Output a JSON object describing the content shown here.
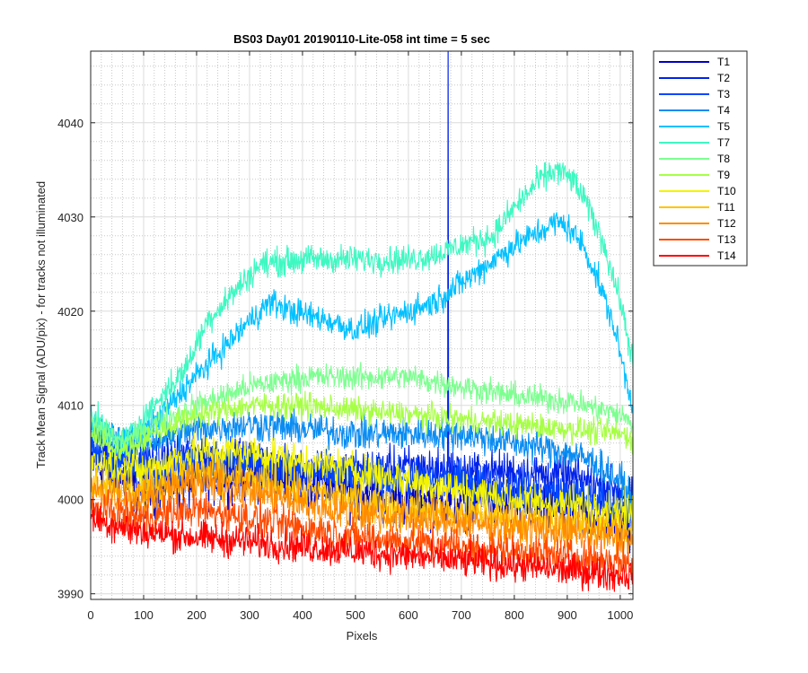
{
  "chart_data": {
    "type": "line",
    "title": "BS03 Day01 20190110-Lite-058 int time = 5 sec",
    "xlabel": "Pixels",
    "ylabel": "Track Mean Signal (ADU/pix) - for tracks not illuminated",
    "xlim": [
      0,
      1024
    ],
    "ylim": [
      3989.4,
      4047.6
    ],
    "xticks": [
      0,
      100,
      200,
      300,
      400,
      500,
      600,
      700,
      800,
      900,
      1000
    ],
    "yticks": [
      3990,
      4000,
      4010,
      4020,
      4030,
      4040
    ],
    "grid": true,
    "minor_grid": true,
    "legend_position": "outside-top-right",
    "x_spacing": 1,
    "series": [
      {
        "name": "T1",
        "color": "#0000c4",
        "noise": 2.2,
        "profile": [
          [
            0,
            4004
          ],
          [
            100,
            4001
          ],
          [
            200,
            4002
          ],
          [
            300,
            4003
          ],
          [
            400,
            4002
          ],
          [
            500,
            4001
          ],
          [
            600,
            4000
          ],
          [
            700,
            4000
          ],
          [
            800,
            3999.5
          ],
          [
            900,
            3999
          ],
          [
            1000,
            3998
          ],
          [
            1023,
            3997
          ]
        ]
      },
      {
        "name": "T2",
        "color": "#0022ea",
        "noise": 1.6,
        "spike": {
          "x": 675,
          "y": 4050
        },
        "profile": [
          [
            0,
            4006
          ],
          [
            100,
            4004
          ],
          [
            200,
            4005
          ],
          [
            300,
            4004
          ],
          [
            400,
            4003
          ],
          [
            500,
            4003
          ],
          [
            600,
            4003.5
          ],
          [
            700,
            4003
          ],
          [
            800,
            4003
          ],
          [
            900,
            4002.5
          ],
          [
            1000,
            4001
          ],
          [
            1023,
            4000
          ]
        ]
      },
      {
        "name": "T3",
        "color": "#0048ff",
        "noise": 1.6,
        "profile": [
          [
            0,
            4005
          ],
          [
            100,
            4003
          ],
          [
            200,
            4004
          ],
          [
            300,
            4004
          ],
          [
            400,
            4003
          ],
          [
            500,
            4002.5
          ],
          [
            600,
            4002
          ],
          [
            700,
            4002
          ],
          [
            800,
            4001
          ],
          [
            900,
            4000.5
          ],
          [
            1000,
            3999.5
          ],
          [
            1023,
            3999
          ]
        ]
      },
      {
        "name": "T4",
        "color": "#0a8cf2",
        "noise": 1.3,
        "profile": [
          [
            0,
            4007
          ],
          [
            100,
            4006
          ],
          [
            200,
            4007.5
          ],
          [
            300,
            4008
          ],
          [
            400,
            4007.5
          ],
          [
            500,
            4007
          ],
          [
            600,
            4007
          ],
          [
            700,
            4007
          ],
          [
            800,
            4006
          ],
          [
            900,
            4005
          ],
          [
            950,
            4004
          ],
          [
            1000,
            4002
          ],
          [
            1023,
            4000
          ]
        ]
      },
      {
        "name": "T5",
        "color": "#00c0ff",
        "noise": 1.1,
        "profile": [
          [
            0,
            4008
          ],
          [
            60,
            4006
          ],
          [
            120,
            4008
          ],
          [
            180,
            4012
          ],
          [
            250,
            4016
          ],
          [
            300,
            4019
          ],
          [
            340,
            4021
          ],
          [
            380,
            4020
          ],
          [
            450,
            4019
          ],
          [
            500,
            4018
          ],
          [
            550,
            4019
          ],
          [
            600,
            4020
          ],
          [
            650,
            4021
          ],
          [
            700,
            4023
          ],
          [
            750,
            4025
          ],
          [
            800,
            4027
          ],
          [
            850,
            4028.5
          ],
          [
            880,
            4029.5
          ],
          [
            900,
            4029
          ],
          [
            930,
            4027
          ],
          [
            960,
            4023
          ],
          [
            990,
            4018
          ],
          [
            1010,
            4013
          ],
          [
            1023,
            4010
          ]
        ]
      },
      {
        "name": "T7",
        "color": "#3ef8c2",
        "noise": 1.1,
        "profile": [
          [
            0,
            4009
          ],
          [
            60,
            4006
          ],
          [
            120,
            4010
          ],
          [
            180,
            4014
          ],
          [
            220,
            4019
          ],
          [
            270,
            4022
          ],
          [
            320,
            4025
          ],
          [
            400,
            4025.5
          ],
          [
            500,
            4025.5
          ],
          [
            600,
            4025.5
          ],
          [
            650,
            4026
          ],
          [
            700,
            4027
          ],
          [
            760,
            4028
          ],
          [
            800,
            4031
          ],
          [
            850,
            4034
          ],
          [
            880,
            4035
          ],
          [
            910,
            4034
          ],
          [
            940,
            4031
          ],
          [
            970,
            4027
          ],
          [
            1000,
            4021
          ],
          [
            1023,
            4015
          ]
        ]
      },
      {
        "name": "T8",
        "color": "#7dff90",
        "noise": 1.0,
        "profile": [
          [
            0,
            4008
          ],
          [
            60,
            4006
          ],
          [
            120,
            4008
          ],
          [
            200,
            4010
          ],
          [
            300,
            4012
          ],
          [
            400,
            4013
          ],
          [
            500,
            4013
          ],
          [
            600,
            4013
          ],
          [
            700,
            4012
          ],
          [
            800,
            4011
          ],
          [
            900,
            4010.5
          ],
          [
            1000,
            4009
          ],
          [
            1023,
            4008
          ]
        ]
      },
      {
        "name": "T9",
        "color": "#a6ff44",
        "noise": 1.0,
        "profile": [
          [
            0,
            4007
          ],
          [
            60,
            4005
          ],
          [
            120,
            4007
          ],
          [
            200,
            4009
          ],
          [
            300,
            4010
          ],
          [
            400,
            4010
          ],
          [
            500,
            4009.5
          ],
          [
            600,
            4009
          ],
          [
            700,
            4008.5
          ],
          [
            800,
            4008
          ],
          [
            900,
            4007.5
          ],
          [
            1000,
            4007
          ],
          [
            1023,
            4006.5
          ]
        ]
      },
      {
        "name": "T10",
        "color": "#f4f400",
        "noise": 1.5,
        "profile": [
          [
            0,
            4004
          ],
          [
            100,
            4003
          ],
          [
            200,
            4005
          ],
          [
            300,
            4005
          ],
          [
            400,
            4004
          ],
          [
            500,
            4003
          ],
          [
            600,
            4002
          ],
          [
            700,
            4001
          ],
          [
            800,
            4000
          ],
          [
            900,
            3999.5
          ],
          [
            1000,
            3999
          ],
          [
            1023,
            3998.5
          ]
        ]
      },
      {
        "name": "T11",
        "color": "#ffc400",
        "noise": 1.5,
        "profile": [
          [
            0,
            4002
          ],
          [
            100,
            4001
          ],
          [
            200,
            4003
          ],
          [
            300,
            4002
          ],
          [
            400,
            4001
          ],
          [
            500,
            4000
          ],
          [
            600,
            3999
          ],
          [
            700,
            3998.5
          ],
          [
            800,
            3998
          ],
          [
            900,
            3997.5
          ],
          [
            1000,
            3997
          ],
          [
            1023,
            3996.5
          ]
        ]
      },
      {
        "name": "T12",
        "color": "#ff8c00",
        "noise": 1.5,
        "profile": [
          [
            0,
            4001
          ],
          [
            100,
            4000
          ],
          [
            200,
            4002
          ],
          [
            300,
            4001
          ],
          [
            400,
            3999.5
          ],
          [
            500,
            3998.5
          ],
          [
            600,
            3998
          ],
          [
            700,
            3997.5
          ],
          [
            800,
            3997
          ],
          [
            900,
            3996.5
          ],
          [
            1000,
            3996
          ],
          [
            1023,
            3995.5
          ]
        ]
      },
      {
        "name": "T13",
        "color": "#ff4a00",
        "noise": 1.4,
        "profile": [
          [
            0,
            3999
          ],
          [
            100,
            3998
          ],
          [
            200,
            3999
          ],
          [
            300,
            3998
          ],
          [
            400,
            3997
          ],
          [
            500,
            3996
          ],
          [
            600,
            3995.5
          ],
          [
            700,
            3995
          ],
          [
            800,
            3994.5
          ],
          [
            900,
            3994
          ],
          [
            1000,
            3993.5
          ],
          [
            1023,
            3993
          ]
        ]
      },
      {
        "name": "T14",
        "color": "#ff0000",
        "noise": 1.3,
        "profile": [
          [
            0,
            3998
          ],
          [
            100,
            3996.5
          ],
          [
            200,
            3996
          ],
          [
            300,
            3995.5
          ],
          [
            400,
            3995
          ],
          [
            500,
            3994.5
          ],
          [
            600,
            3994
          ],
          [
            700,
            3993.5
          ],
          [
            800,
            3993
          ],
          [
            900,
            3992.5
          ],
          [
            1000,
            3992
          ],
          [
            1023,
            3992
          ]
        ]
      }
    ]
  }
}
